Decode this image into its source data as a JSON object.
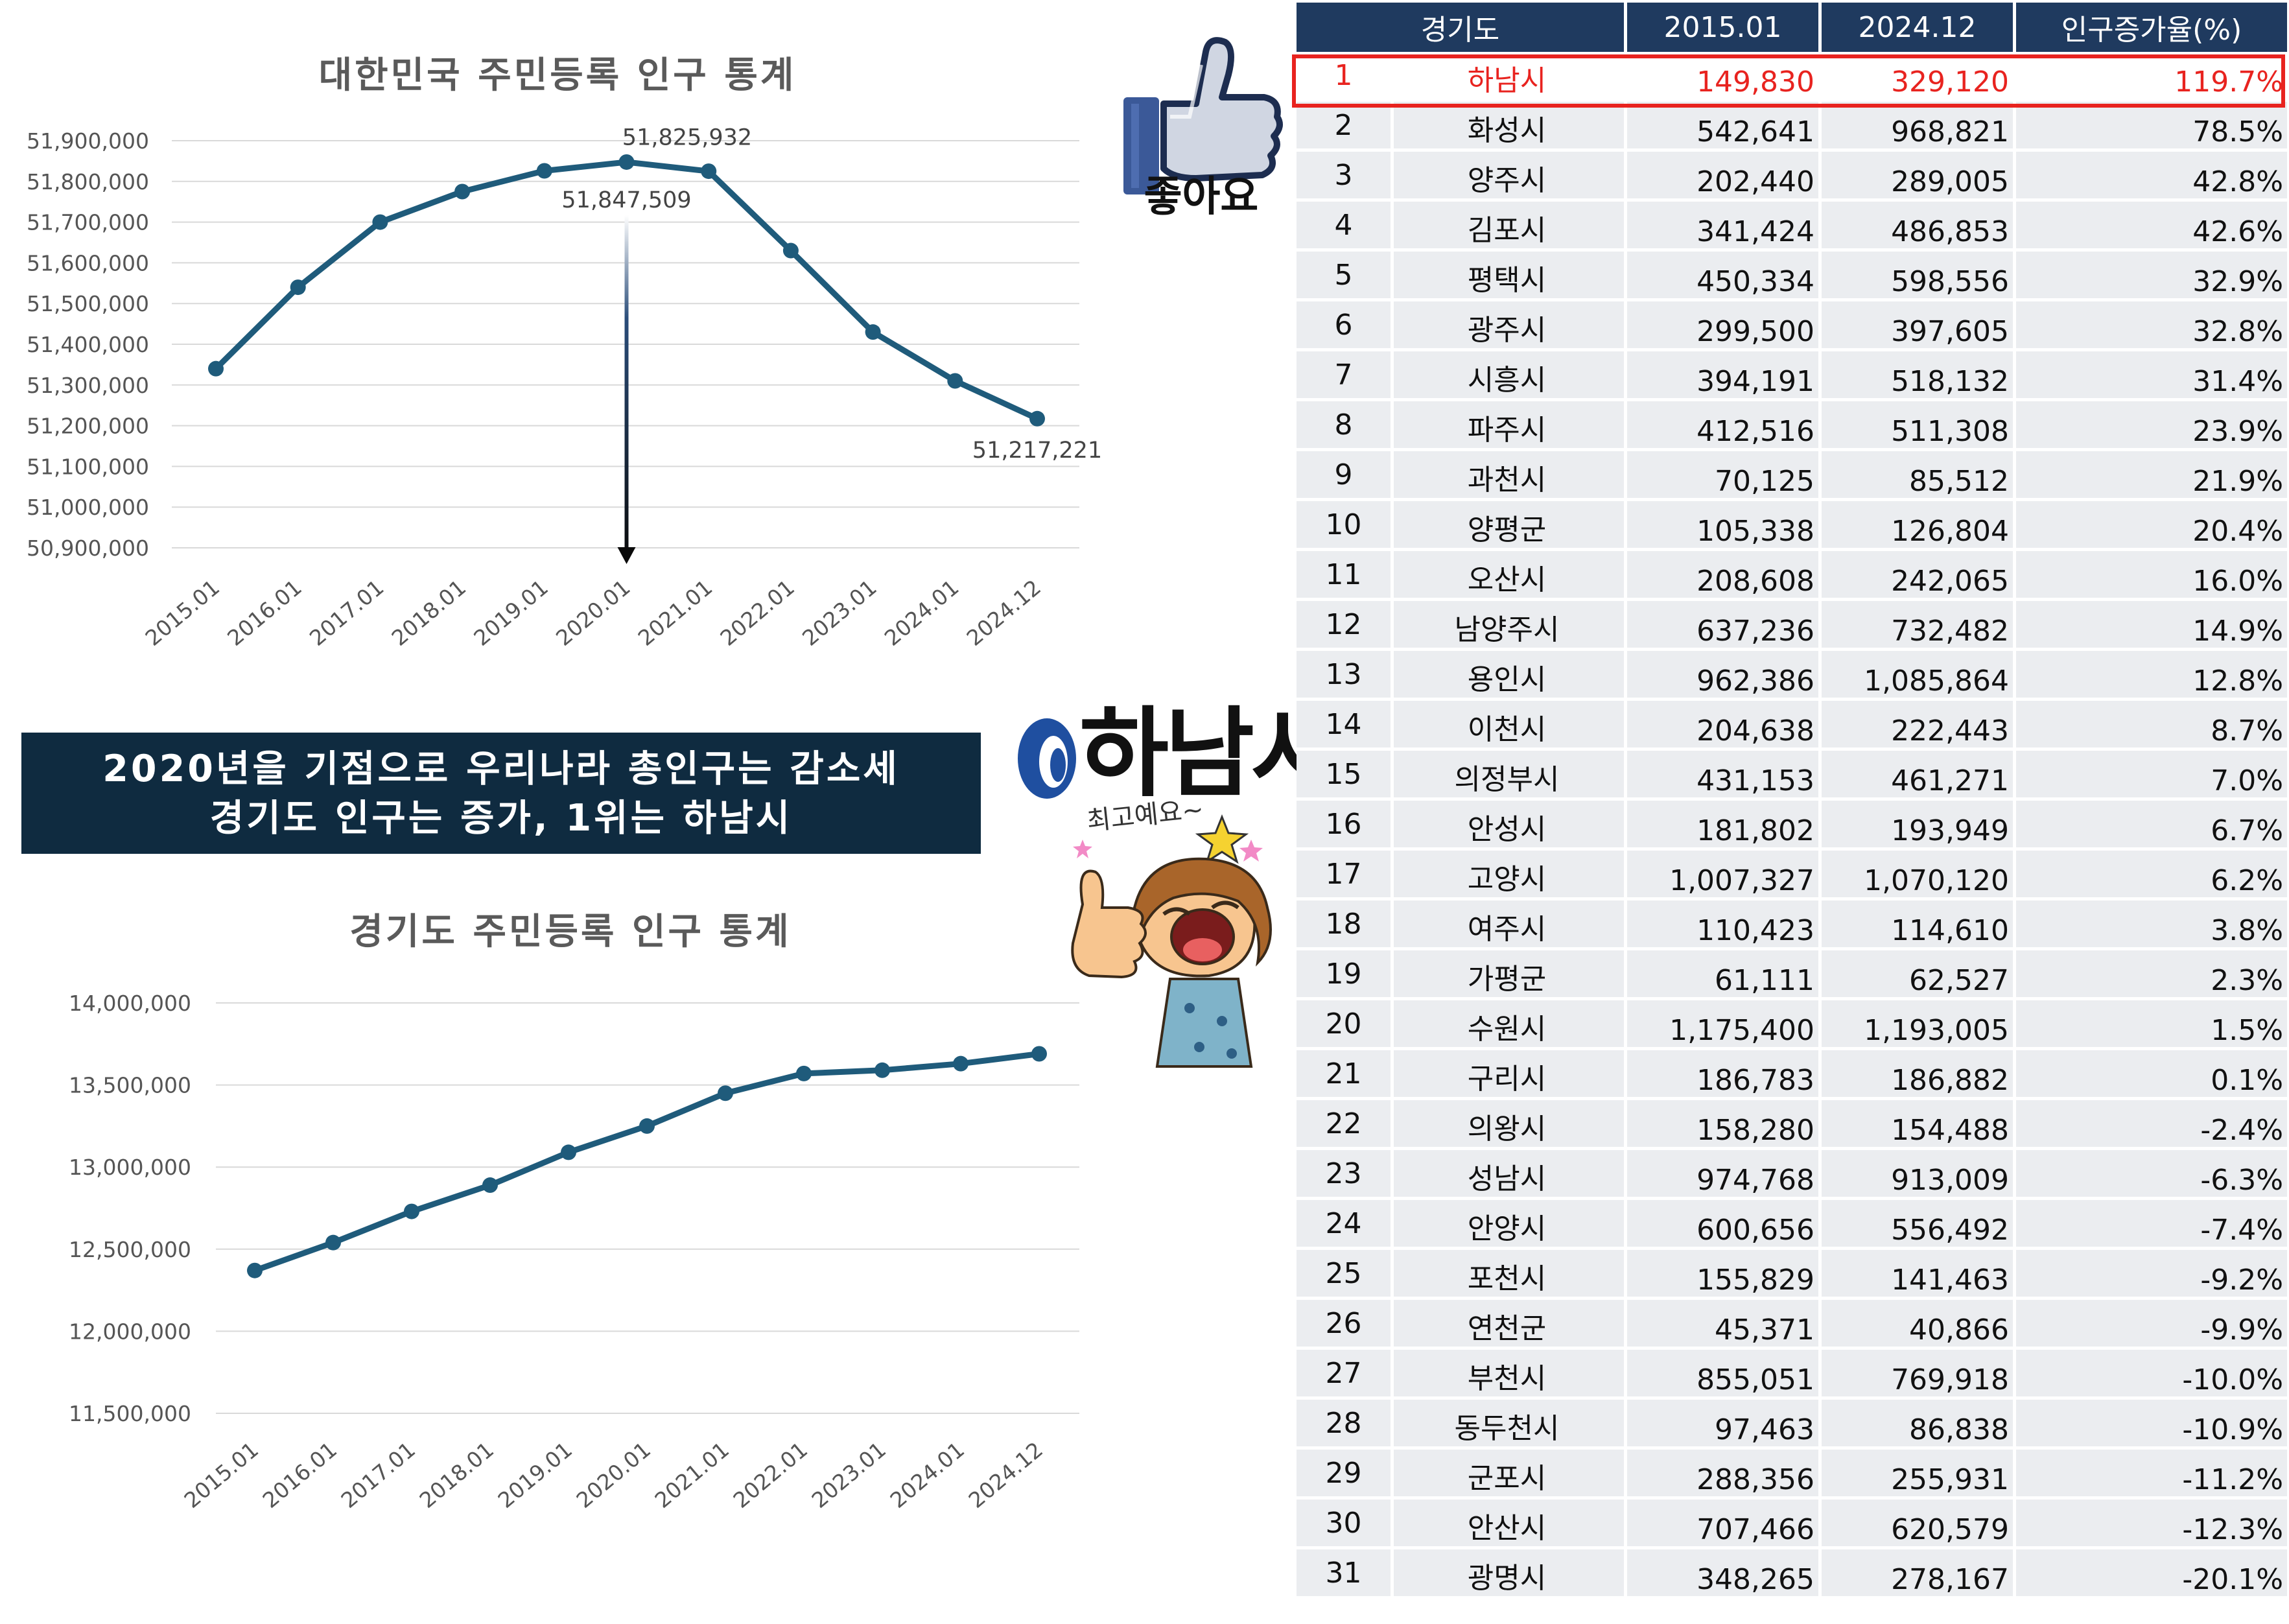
{
  "chart_data": [
    {
      "type": "line",
      "title": "대한민국 주민등록 인구 통계",
      "categories": [
        "2015.01",
        "2016.01",
        "2017.01",
        "2018.01",
        "2019.01",
        "2020.01",
        "2021.01",
        "2022.01",
        "2023.01",
        "2024.01",
        "2024.12"
      ],
      "values": [
        51340000,
        51540000,
        51700000,
        51775000,
        51825932,
        51847509,
        51825000,
        51630000,
        51430000,
        51310000,
        51217221
      ],
      "yticks": [
        "51,900,000",
        "51,800,000",
        "51,700,000",
        "51,600,000",
        "51,500,000",
        "51,400,000",
        "51,300,000",
        "51,200,000",
        "51,100,000",
        "51,000,000",
        "50,900,000"
      ],
      "ylim": [
        50900000,
        51900000
      ],
      "data_labels": [
        {
          "index": 4,
          "text": "51,825,932"
        },
        {
          "index": 5,
          "text": "51,847,509"
        },
        {
          "index": 10,
          "text": "51,217,221"
        }
      ],
      "xlabel": "",
      "ylabel": "",
      "grid": true
    },
    {
      "type": "line",
      "title": "경기도 주민등록 인구 통계",
      "categories": [
        "2015.01",
        "2016.01",
        "2017.01",
        "2018.01",
        "2019.01",
        "2020.01",
        "2021.01",
        "2022.01",
        "2023.01",
        "2024.01",
        "2024.12"
      ],
      "values": [
        12370000,
        12540000,
        12730000,
        12890000,
        13090000,
        13250000,
        13450000,
        13570000,
        13590000,
        13630000,
        13690000
      ],
      "yticks": [
        "14,000,000",
        "13,500,000",
        "13,000,000",
        "12,500,000",
        "12,000,000",
        "11,500,000"
      ],
      "ylim": [
        11500000,
        14000000
      ],
      "xlabel": "",
      "ylabel": "",
      "grid": true
    },
    {
      "type": "table",
      "columns": [
        "경기도",
        "2015.01",
        "2024.12",
        "인구증가율(%)"
      ],
      "rows": [
        [
          "1",
          "하남시",
          "149,830",
          "329,120",
          "119.7%"
        ],
        [
          "2",
          "화성시",
          "542,641",
          "968,821",
          "78.5%"
        ],
        [
          "3",
          "양주시",
          "202,440",
          "289,005",
          "42.8%"
        ],
        [
          "4",
          "김포시",
          "341,424",
          "486,853",
          "42.6%"
        ],
        [
          "5",
          "평택시",
          "450,334",
          "598,556",
          "32.9%"
        ],
        [
          "6",
          "광주시",
          "299,500",
          "397,605",
          "32.8%"
        ],
        [
          "7",
          "시흥시",
          "394,191",
          "518,132",
          "31.4%"
        ],
        [
          "8",
          "파주시",
          "412,516",
          "511,308",
          "23.9%"
        ],
        [
          "9",
          "과천시",
          "70,125",
          "85,512",
          "21.9%"
        ],
        [
          "10",
          "양평군",
          "105,338",
          "126,804",
          "20.4%"
        ],
        [
          "11",
          "오산시",
          "208,608",
          "242,065",
          "16.0%"
        ],
        [
          "12",
          "남양주시",
          "637,236",
          "732,482",
          "14.9%"
        ],
        [
          "13",
          "용인시",
          "962,386",
          "1,085,864",
          "12.8%"
        ],
        [
          "14",
          "이천시",
          "204,638",
          "222,443",
          "8.7%"
        ],
        [
          "15",
          "의정부시",
          "431,153",
          "461,271",
          "7.0%"
        ],
        [
          "16",
          "안성시",
          "181,802",
          "193,949",
          "6.7%"
        ],
        [
          "17",
          "고양시",
          "1,007,327",
          "1,070,120",
          "6.2%"
        ],
        [
          "18",
          "여주시",
          "110,423",
          "114,610",
          "3.8%"
        ],
        [
          "19",
          "가평군",
          "61,111",
          "62,527",
          "2.3%"
        ],
        [
          "20",
          "수원시",
          "1,175,400",
          "1,193,005",
          "1.5%"
        ],
        [
          "21",
          "구리시",
          "186,783",
          "186,882",
          "0.1%"
        ],
        [
          "22",
          "의왕시",
          "158,280",
          "154,488",
          "-2.4%"
        ],
        [
          "23",
          "성남시",
          "974,768",
          "913,009",
          "-6.3%"
        ],
        [
          "24",
          "안양시",
          "600,656",
          "556,492",
          "-7.4%"
        ],
        [
          "25",
          "포천시",
          "155,829",
          "141,463",
          "-9.2%"
        ],
        [
          "26",
          "연천군",
          "45,371",
          "40,866",
          "-9.9%"
        ],
        [
          "27",
          "부천시",
          "855,051",
          "769,918",
          "-10.0%"
        ],
        [
          "28",
          "동두천시",
          "97,463",
          "86,838",
          "-10.9%"
        ],
        [
          "29",
          "군포시",
          "288,356",
          "255,931",
          "-11.2%"
        ],
        [
          "30",
          "안산시",
          "707,466",
          "620,579",
          "-12.3%"
        ],
        [
          "31",
          "광명시",
          "348,265",
          "278,167",
          "-20.1%"
        ]
      ]
    }
  ],
  "banner": {
    "line1": "2020년을 기점으로 우리나라 총인구는 감소세",
    "line2": "경기도 인구는 증가, 1위는 하남시"
  },
  "stickers": {
    "like_label": "좋아요",
    "logo_text": "하남시",
    "mascot_caption": "최고예요~"
  },
  "colors": {
    "series": "#1f5b7b",
    "banner_bg": "#0f2b40",
    "table_header": "#1f3a5f",
    "table_row": "#ebedf0",
    "highlight": "#e8231f"
  }
}
